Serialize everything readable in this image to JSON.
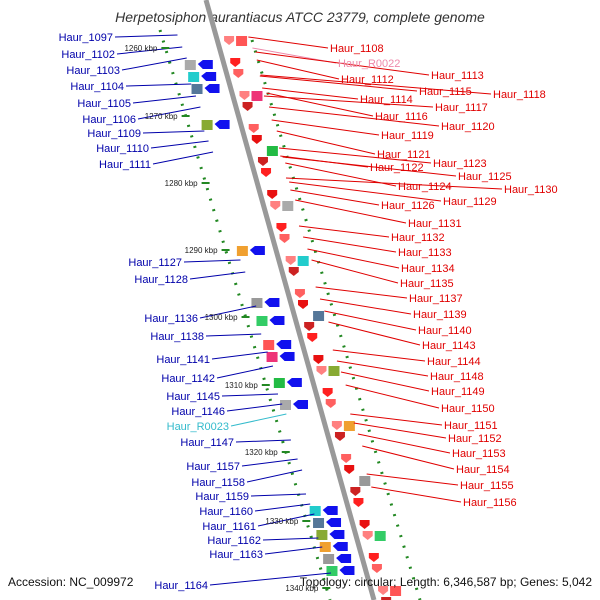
{
  "header": {
    "title": "Herpetosiphon aurantiacus ATCC 23779, complete genome"
  },
  "footer": {
    "accession": "Accession: NC_009972",
    "summary": "Topology: circular; Length: 6,346,587 bp; Genes: 5,042"
  },
  "colors": {
    "forward_label": "#e00000",
    "reverse_label": "#0000aa",
    "rna_forward_label": "#ee88aa",
    "rna_reverse_label": "#33bbcc",
    "backbone": "#999999",
    "tick": "#228822"
  },
  "scale": {
    "ticks": [
      "1260 kbp",
      "1270 kbp",
      "1280 kbp",
      "1290 kbp",
      "1300 kbp",
      "1310 kbp",
      "1320 kbp",
      "1330 kbp",
      "1340 kbp"
    ]
  },
  "labels": {
    "forward": [
      "Haur_1108",
      "Haur_R0022",
      "Haur_1112",
      "Haur_1113",
      "Haur_1114",
      "Haur_1115",
      "Haur_1118",
      "Haur_1116",
      "Haur_1117",
      "Haur_1119",
      "Haur_1120",
      "Haur_1121",
      "Haur_1122",
      "Haur_1123",
      "Haur_1125",
      "Haur_1124",
      "Haur_1130",
      "Haur_1126",
      "Haur_1129",
      "Haur_1131",
      "Haur_1132",
      "Haur_1133",
      "Haur_1134",
      "Haur_1135",
      "Haur_1137",
      "Haur_1139",
      "Haur_1140",
      "Haur_1143",
      "Haur_1144",
      "Haur_1148",
      "Haur_1149",
      "Haur_1150",
      "Haur_1151",
      "Haur_1152",
      "Haur_1153",
      "Haur_1154",
      "Haur_1155",
      "Haur_1156"
    ],
    "reverse": [
      "Haur_1097",
      "Haur_1102",
      "Haur_1103",
      "Haur_1104",
      "Haur_1105",
      "Haur_1106",
      "Haur_1109",
      "Haur_1110",
      "Haur_1111",
      "Haur_1127",
      "Haur_1128",
      "Haur_1136",
      "Haur_1138",
      "Haur_1141",
      "Haur_1142",
      "Haur_1145",
      "Haur_1146",
      "Haur_R0023",
      "Haur_1147",
      "Haur_1157",
      "Haur_1158",
      "Haur_1159",
      "Haur_1160",
      "Haur_1161",
      "Haur_1162",
      "Haur_1163",
      "Haur_1164"
    ]
  }
}
